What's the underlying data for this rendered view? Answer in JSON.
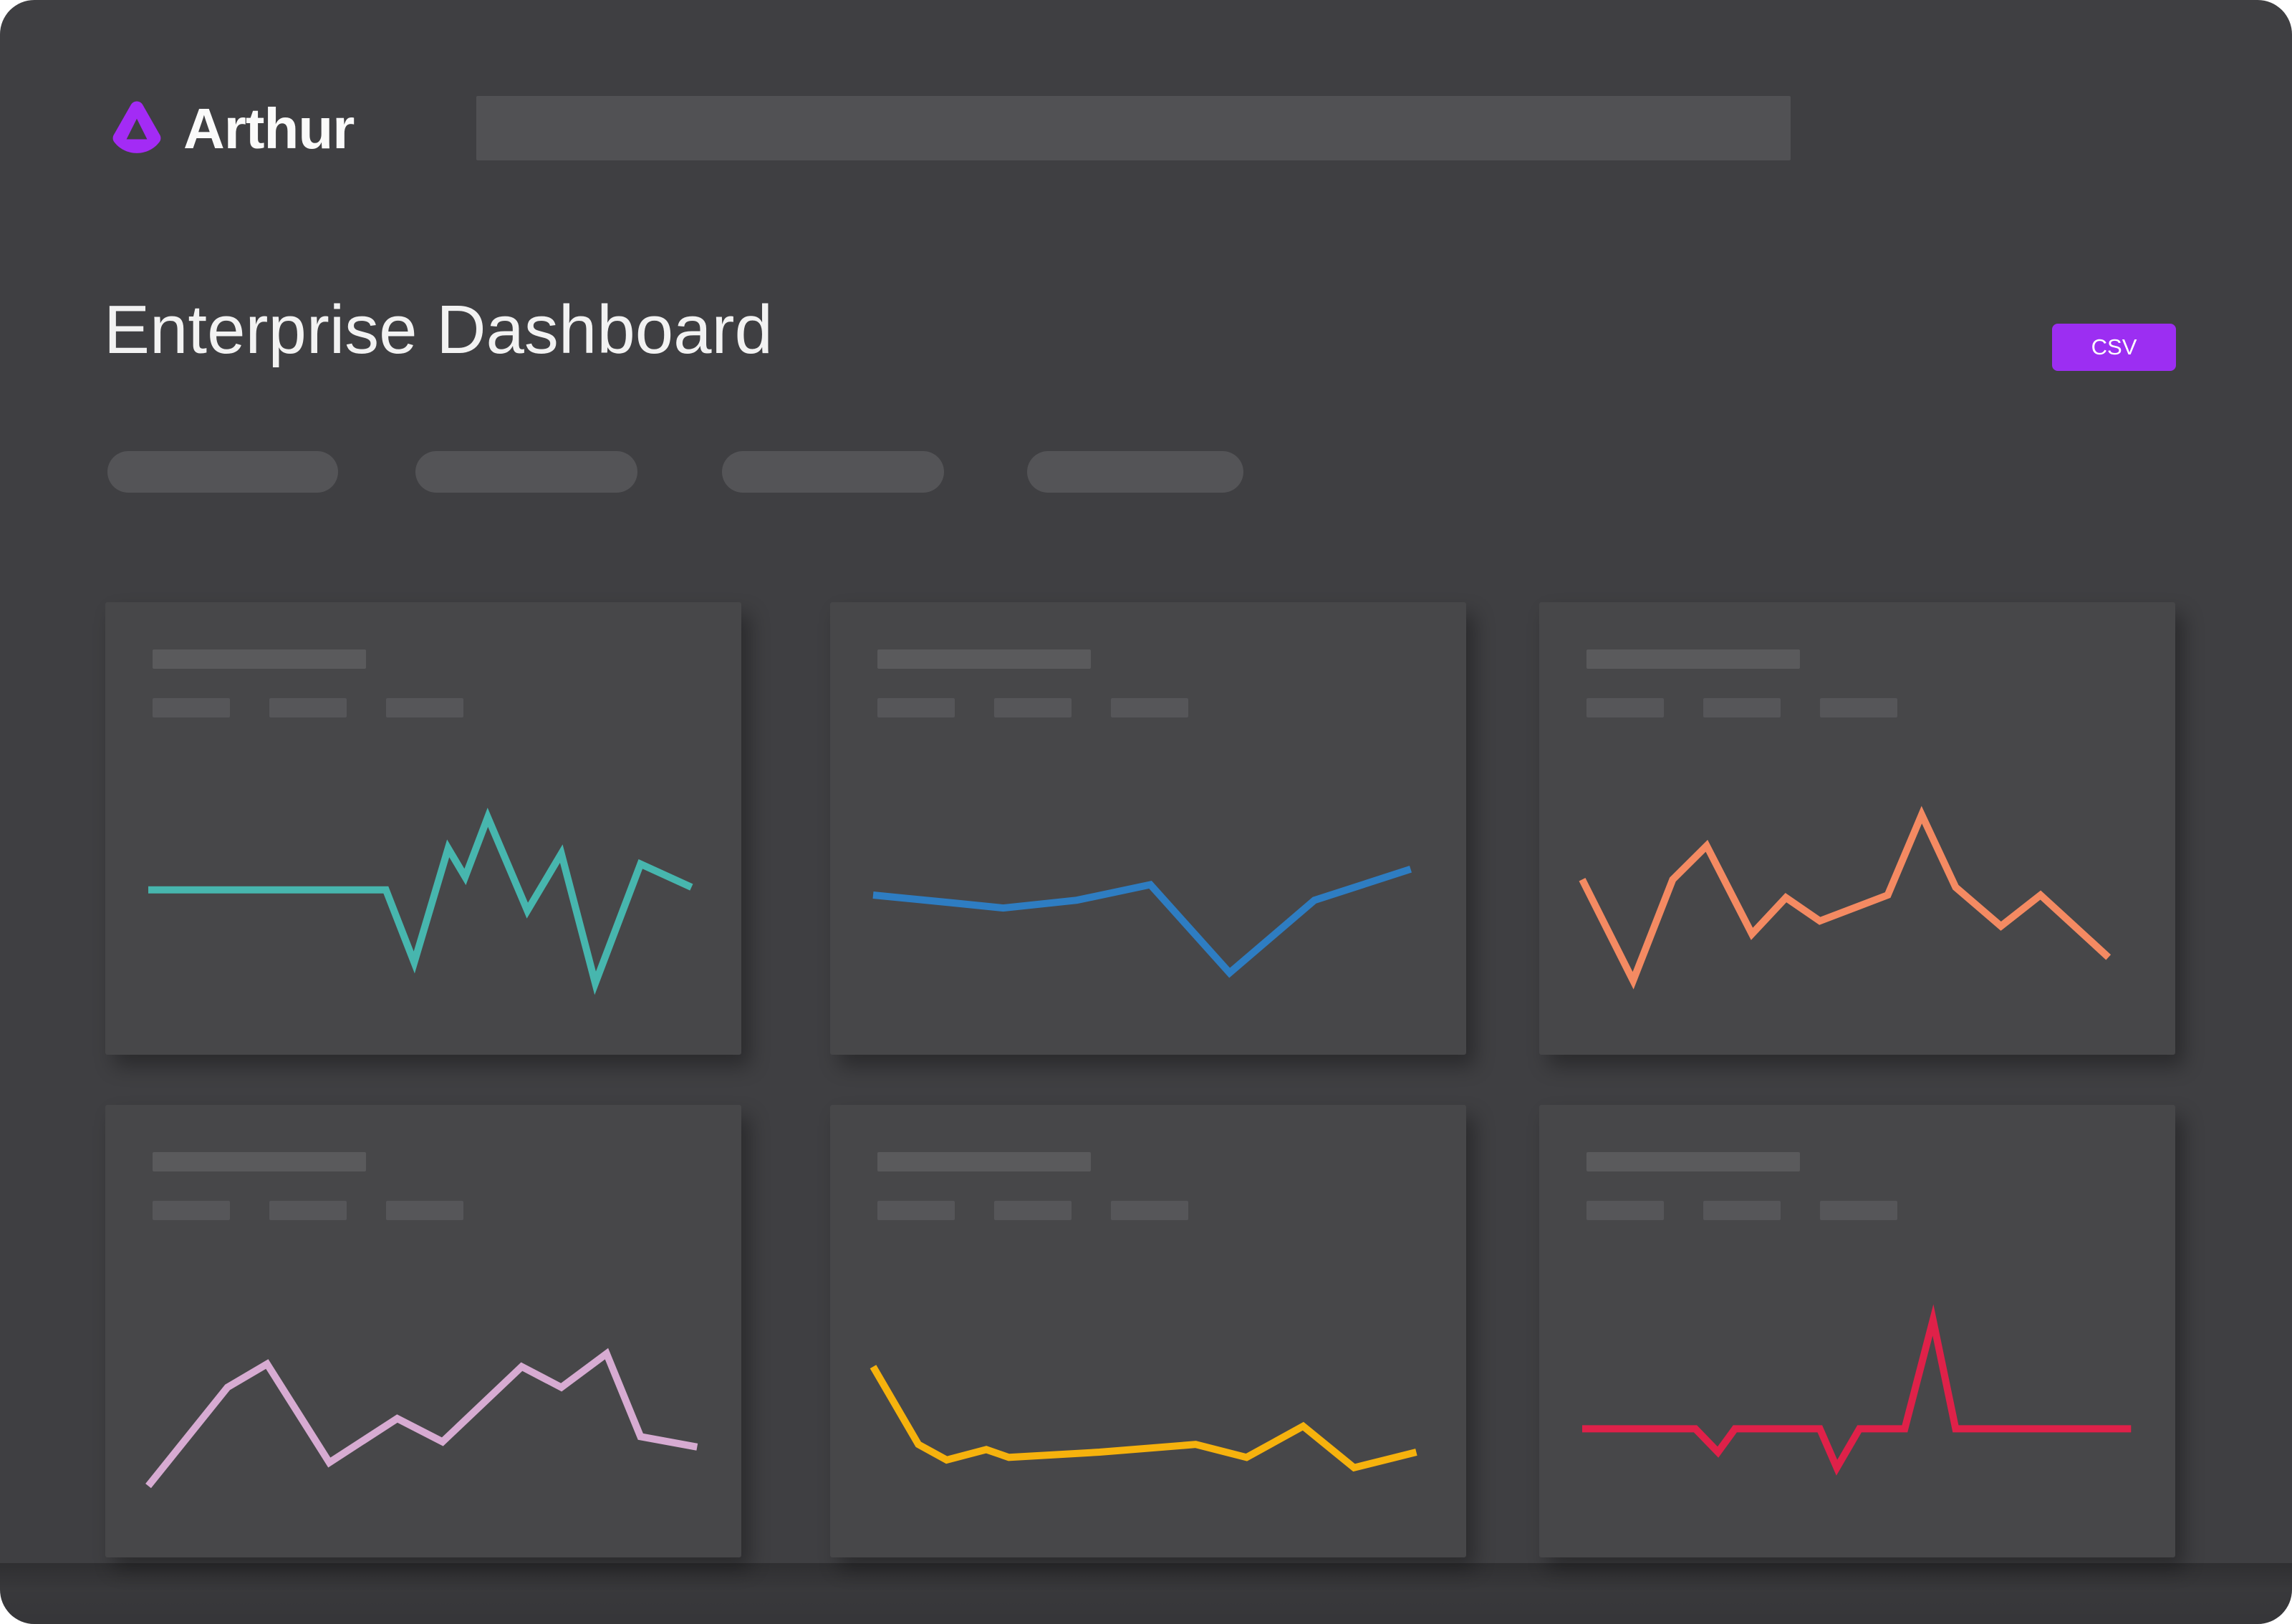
{
  "brand": {
    "name": "Arthur"
  },
  "header": {
    "search_value": ""
  },
  "page": {
    "title": "Enterprise Dashboard"
  },
  "toolbar": {
    "export_label": "CSV"
  },
  "filters": {
    "pill_count": 4,
    "pills_are_placeholders": true
  },
  "colors": {
    "panel_bg": "#3f3f42",
    "card_bg": "#474749",
    "placeholder_bar": "#5a5a5c",
    "accent_purple": "#9c2ef2",
    "logo_purple": "#a32bf5",
    "text": "#f2f2f2"
  },
  "cards": {
    "count": 6,
    "placeholder_title_bar": true,
    "placeholder_legend_chips_per_card": 3
  },
  "chart_data": [
    {
      "id": "card-1",
      "type": "line",
      "color": "#47b6ae",
      "axes": "none",
      "x_range": [
        0,
        100
      ],
      "y_range": [
        0,
        100
      ],
      "points": [
        [
          0,
          52
        ],
        [
          42,
          52
        ],
        [
          47,
          24
        ],
        [
          53,
          68
        ],
        [
          56,
          57
        ],
        [
          60,
          80
        ],
        [
          67,
          44
        ],
        [
          73,
          66
        ],
        [
          79,
          16
        ],
        [
          87,
          62
        ],
        [
          96,
          53
        ]
      ]
    },
    {
      "id": "card-2",
      "type": "line",
      "color": "#2e7dc2",
      "axes": "none",
      "x_range": [
        0,
        100
      ],
      "y_range": [
        0,
        100
      ],
      "points": [
        [
          0,
          50
        ],
        [
          14,
          47
        ],
        [
          23,
          45
        ],
        [
          36,
          48
        ],
        [
          49,
          54
        ],
        [
          63,
          20
        ],
        [
          78,
          48
        ],
        [
          95,
          60
        ]
      ]
    },
    {
      "id": "card-3",
      "type": "line",
      "color": "#f48a62",
      "axes": "none",
      "x_range": [
        0,
        100
      ],
      "y_range": [
        0,
        100
      ],
      "points": [
        [
          0,
          56
        ],
        [
          9,
          17
        ],
        [
          16,
          56
        ],
        [
          22,
          69
        ],
        [
          30,
          35
        ],
        [
          36,
          49
        ],
        [
          42,
          40
        ],
        [
          54,
          50
        ],
        [
          60,
          81
        ],
        [
          66,
          53
        ],
        [
          74,
          38
        ],
        [
          81,
          50
        ],
        [
          93,
          26
        ]
      ]
    },
    {
      "id": "card-4",
      "type": "line",
      "color": "#d7abd2",
      "axes": "none",
      "x_range": [
        0,
        100
      ],
      "y_range": [
        0,
        100
      ],
      "points": [
        [
          0,
          16
        ],
        [
          14,
          54
        ],
        [
          21,
          63
        ],
        [
          32,
          25
        ],
        [
          44,
          42
        ],
        [
          52,
          33
        ],
        [
          66,
          62
        ],
        [
          73,
          54
        ],
        [
          81,
          67
        ],
        [
          87,
          35
        ],
        [
          97,
          31
        ]
      ]
    },
    {
      "id": "card-5",
      "type": "line",
      "color": "#f6b20d",
      "axes": "none",
      "x_range": [
        0,
        100
      ],
      "y_range": [
        0,
        100
      ],
      "points": [
        [
          0,
          62
        ],
        [
          8,
          32
        ],
        [
          13,
          26
        ],
        [
          20,
          30
        ],
        [
          24,
          27
        ],
        [
          40,
          29
        ],
        [
          57,
          32
        ],
        [
          66,
          27
        ],
        [
          76,
          39
        ],
        [
          85,
          23
        ],
        [
          96,
          29
        ]
      ]
    },
    {
      "id": "card-6",
      "type": "line",
      "color": "#df2149",
      "axes": "none",
      "x_range": [
        0,
        100
      ],
      "y_range": [
        0,
        100
      ],
      "points": [
        [
          0,
          38
        ],
        [
          20,
          38
        ],
        [
          24,
          29
        ],
        [
          27,
          38
        ],
        [
          42,
          38
        ],
        [
          45,
          23
        ],
        [
          49,
          38
        ],
        [
          57,
          38
        ],
        [
          62,
          80
        ],
        [
          66,
          38
        ],
        [
          97,
          38
        ]
      ]
    }
  ]
}
